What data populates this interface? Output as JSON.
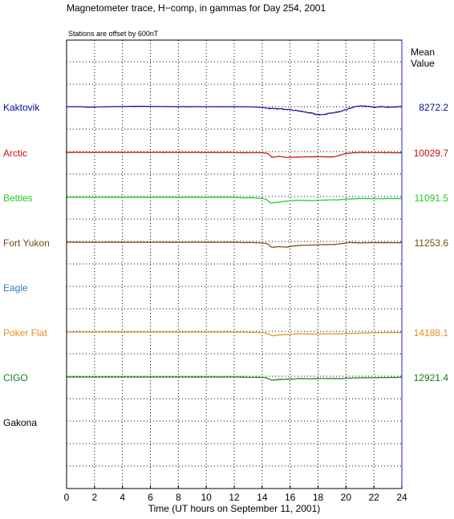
{
  "chart_data": {
    "type": "line",
    "title": "Magnetometer trace, H−comp, in gammas for Day 254, 2001",
    "offset_note": "Stations are offset by   600nT",
    "mean_header": [
      "Mean",
      "Value"
    ],
    "xlabel": "Time (UT hours on September 11, 2001)",
    "xlim": [
      0,
      24
    ],
    "x_ticks": [
      0,
      2,
      4,
      6,
      8,
      10,
      12,
      14,
      16,
      18,
      20,
      22,
      24
    ],
    "grid": true,
    "series": [
      {
        "name": "Kaktovik",
        "color": "#0a0aa0",
        "mean": "8272.2",
        "points": [
          [
            0,
            0
          ],
          [
            1,
            0
          ],
          [
            1.5,
            -25
          ],
          [
            2,
            -15
          ],
          [
            3,
            0
          ],
          [
            4,
            10
          ],
          [
            5,
            20
          ],
          [
            6,
            15
          ],
          [
            7,
            5
          ],
          [
            8,
            0
          ],
          [
            10,
            0
          ],
          [
            12,
            0
          ],
          [
            13,
            -5
          ],
          [
            13.5,
            -15
          ],
          [
            14,
            -40
          ],
          [
            14.5,
            -80
          ],
          [
            15,
            -100
          ],
          [
            15.5,
            -120
          ],
          [
            16,
            -150
          ],
          [
            16.5,
            -190
          ],
          [
            17,
            -250
          ],
          [
            17.5,
            -320
          ],
          [
            18,
            -400
          ],
          [
            18.5,
            -380
          ],
          [
            19,
            -320
          ],
          [
            19.5,
            -250
          ],
          [
            20,
            -150
          ],
          [
            20.5,
            -30
          ],
          [
            21,
            30
          ],
          [
            21.5,
            20
          ],
          [
            22,
            -20
          ],
          [
            22.5,
            0
          ],
          [
            23,
            -20
          ],
          [
            23.5,
            -10
          ],
          [
            24,
            10
          ]
        ]
      },
      {
        "name": "Arctic",
        "color": "#c81010",
        "mean": "10029.7",
        "points": [
          [
            0,
            0
          ],
          [
            4,
            0
          ],
          [
            8,
            0
          ],
          [
            12,
            -5
          ],
          [
            12.8,
            -20
          ],
          [
            13.2,
            -10
          ],
          [
            14,
            -15
          ],
          [
            14.4,
            -50
          ],
          [
            14.7,
            -240
          ],
          [
            15.2,
            -200
          ],
          [
            15.8,
            -250
          ],
          [
            16.5,
            -230
          ],
          [
            17.3,
            -220
          ],
          [
            18.1,
            -210
          ],
          [
            18.8,
            -230
          ],
          [
            19.2,
            -210
          ],
          [
            19.5,
            -150
          ],
          [
            20,
            -60
          ],
          [
            20.5,
            -20
          ],
          [
            21,
            0
          ],
          [
            22,
            -10
          ],
          [
            23,
            -10
          ],
          [
            24,
            -20
          ]
        ]
      },
      {
        "name": "Bettles",
        "color": "#22cc22",
        "mean": "11091.5",
        "points": [
          [
            0,
            0
          ],
          [
            4,
            0
          ],
          [
            8,
            0
          ],
          [
            12,
            0
          ],
          [
            12.8,
            -30
          ],
          [
            13.2,
            -15
          ],
          [
            14,
            -60
          ],
          [
            14.3,
            -100
          ],
          [
            14.6,
            -280
          ],
          [
            15,
            -250
          ],
          [
            15.5,
            -210
          ],
          [
            16,
            -180
          ],
          [
            16.5,
            -150
          ],
          [
            17.5,
            -160
          ],
          [
            18.5,
            -140
          ],
          [
            19.5,
            -120
          ],
          [
            20,
            -90
          ],
          [
            21,
            -60
          ],
          [
            22,
            -70
          ],
          [
            23,
            -60
          ],
          [
            24,
            -60
          ]
        ]
      },
      {
        "name": "Fort Yukon",
        "color": "#7a4a0a",
        "mean": "11253.6",
        "points": [
          [
            0,
            0
          ],
          [
            4,
            0
          ],
          [
            8,
            0
          ],
          [
            12,
            0
          ],
          [
            12.8,
            -20
          ],
          [
            13.2,
            -10
          ],
          [
            14,
            -40
          ],
          [
            14.3,
            -60
          ],
          [
            14.7,
            -250
          ],
          [
            15.2,
            -220
          ],
          [
            15.8,
            -240
          ],
          [
            16.2,
            -190
          ],
          [
            16.8,
            -150
          ],
          [
            17.5,
            -140
          ],
          [
            18.3,
            -120
          ],
          [
            19.2,
            -110
          ],
          [
            19.7,
            -70
          ],
          [
            20.3,
            -10
          ],
          [
            21,
            -30
          ],
          [
            22,
            -20
          ],
          [
            23,
            -25
          ],
          [
            24,
            -20
          ]
        ]
      },
      {
        "name": "Eagle",
        "color": "#2a80c0",
        "mean": "",
        "points": []
      },
      {
        "name": "Poker Flat",
        "color": "#e89020",
        "mean": "14188.1",
        "points": [
          [
            0,
            0
          ],
          [
            4,
            0
          ],
          [
            8,
            0
          ],
          [
            12,
            0
          ],
          [
            13,
            -10
          ],
          [
            14,
            -25
          ],
          [
            14.3,
            -50
          ],
          [
            14.7,
            -180
          ],
          [
            15.2,
            -140
          ],
          [
            16,
            -110
          ],
          [
            16.5,
            -80
          ],
          [
            17.5,
            -100
          ],
          [
            18.5,
            -80
          ],
          [
            19.5,
            -90
          ],
          [
            20.5,
            -60
          ],
          [
            21.5,
            -40
          ],
          [
            22.5,
            -30
          ],
          [
            23.5,
            -20
          ],
          [
            24,
            -20
          ]
        ]
      },
      {
        "name": "CIGO",
        "color": "#1a7a1a",
        "mean": "12921.4",
        "points": [
          [
            0,
            0
          ],
          [
            4,
            0
          ],
          [
            8,
            0
          ],
          [
            12,
            0
          ],
          [
            13,
            -10
          ],
          [
            14,
            -20
          ],
          [
            14.3,
            -40
          ],
          [
            14.7,
            -160
          ],
          [
            15.2,
            -120
          ],
          [
            16,
            -100
          ],
          [
            16.5,
            -80
          ],
          [
            17.5,
            -90
          ],
          [
            18.5,
            -70
          ],
          [
            19.5,
            -80
          ],
          [
            20.5,
            -50
          ],
          [
            21.5,
            -30
          ],
          [
            22.5,
            -30
          ],
          [
            23.5,
            -20
          ],
          [
            24,
            -10
          ]
        ]
      },
      {
        "name": "Gakona",
        "color": "#000000",
        "mean": "",
        "points": []
      }
    ]
  }
}
